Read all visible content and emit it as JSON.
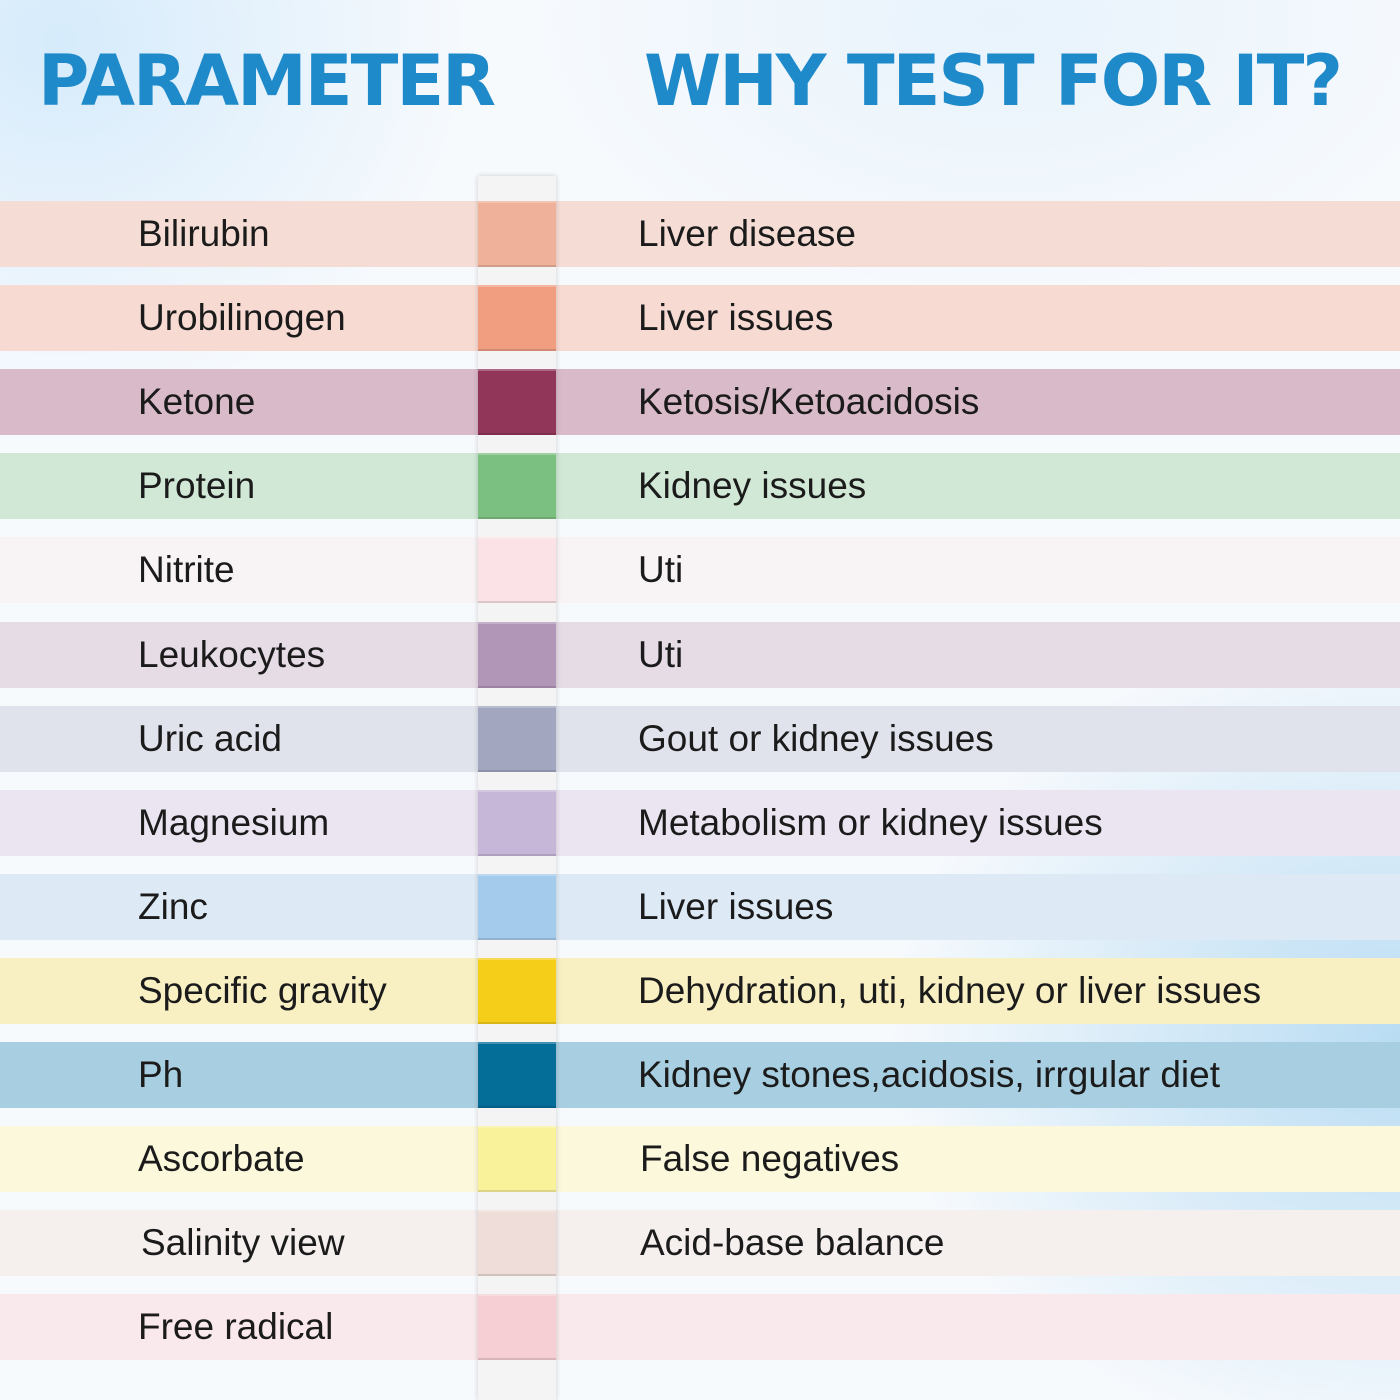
{
  "header": {
    "parameter": "PARAMETER",
    "why": "WHY TEST FOR IT?"
  },
  "colors": {
    "header_text": "#1f8ac9"
  },
  "rows": [
    {
      "label": "Bilirubin",
      "reason": "Liver disease",
      "band": "#f5ddd5",
      "pad": "#f0b19a"
    },
    {
      "label": "Urobilinogen",
      "reason": "Liver issues",
      "band": "#f7dbd3",
      "pad": "#f19e80"
    },
    {
      "label": "Ketone",
      "reason": "Ketosis/Ketoacidosis",
      "band": "#d9bac8",
      "pad": "#913658"
    },
    {
      "label": "Protein",
      "reason": "Kidney issues",
      "band": "#d0e8d5",
      "pad": "#7bc080"
    },
    {
      "label": "Nitrite",
      "reason": "Uti",
      "band": "#f8f3f5",
      "pad": "#fbe2e6"
    },
    {
      "label": "Leukocytes",
      "reason": "Uti",
      "band": "#e5dce6",
      "pad": "#b296b8"
    },
    {
      "label": "Uric acid",
      "reason": "Gout or kidney issues",
      "band": "#e0e3ec",
      "pad": "#a2a6bf"
    },
    {
      "label": "Magnesium",
      "reason": "Metabolism or kidney issues",
      "band": "#ebe5f1",
      "pad": "#c6b6d7"
    },
    {
      "label": "Zinc",
      "reason": "Liver issues",
      "band": "#ddeaf6",
      "pad": "#a4cbeb"
    },
    {
      "label": "Specific gravity",
      "reason": "Dehydration, uti, kidney or liver issues",
      "band": "#f8f0c3",
      "pad": "#f4ce18"
    },
    {
      "label": "Ph",
      "reason": "Kidney stones,acidosis, irrgular diet",
      "band": "#a8cfe1",
      "pad": "#046d98"
    },
    {
      "label": "Ascorbate",
      "reason": "False negatives",
      "band": "#fcf8dc",
      "pad": "#faf29a"
    },
    {
      "label": "Salinity view",
      "reason": "Acid-base balance",
      "band": "#f5efee",
      "pad": "#efddd9"
    },
    {
      "label": "Free radical",
      "reason": "",
      "band": "#f9e9ec",
      "pad": "#f5cfd3"
    }
  ]
}
